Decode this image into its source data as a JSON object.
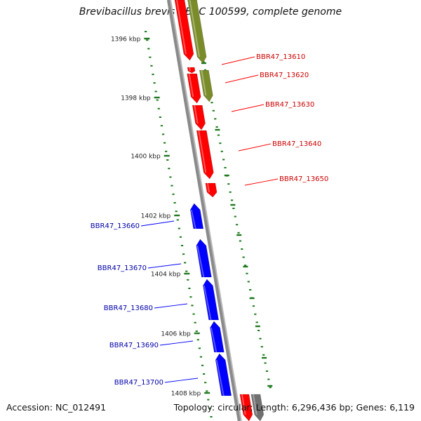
{
  "title": "Brevibacillus brevis NBRC 100599, complete genome",
  "accession": "Accession: NC_012491",
  "summary": "Topology: circular; Length: 6,296,436 bp; Genes: 6,119",
  "colors": {
    "forward_gene": "#ff0000",
    "reverse_gene": "#0000ff",
    "other_feature": "#7a8c2a",
    "backbone": "#8a8a8a",
    "tick": "#1f7a1f",
    "forward_label": "#cc0000",
    "reverse_label": "#0000aa"
  },
  "ticks": [
    "1396 kbp",
    "1398 kbp",
    "1400 kbp",
    "1402 kbp",
    "1404 kbp",
    "1406 kbp",
    "1408 kbp"
  ],
  "forward_genes": [
    {
      "label": "BBR47_13610"
    },
    {
      "label": "BBR47_13620"
    },
    {
      "label": "BBR47_13630"
    },
    {
      "label": "BBR47_13640"
    },
    {
      "label": "BBR47_13650"
    }
  ],
  "reverse_genes": [
    {
      "label": "BBR47_13660"
    },
    {
      "label": "BBR47_13670"
    },
    {
      "label": "BBR47_13680"
    },
    {
      "label": "BBR47_13690"
    },
    {
      "label": "BBR47_13700"
    }
  ]
}
